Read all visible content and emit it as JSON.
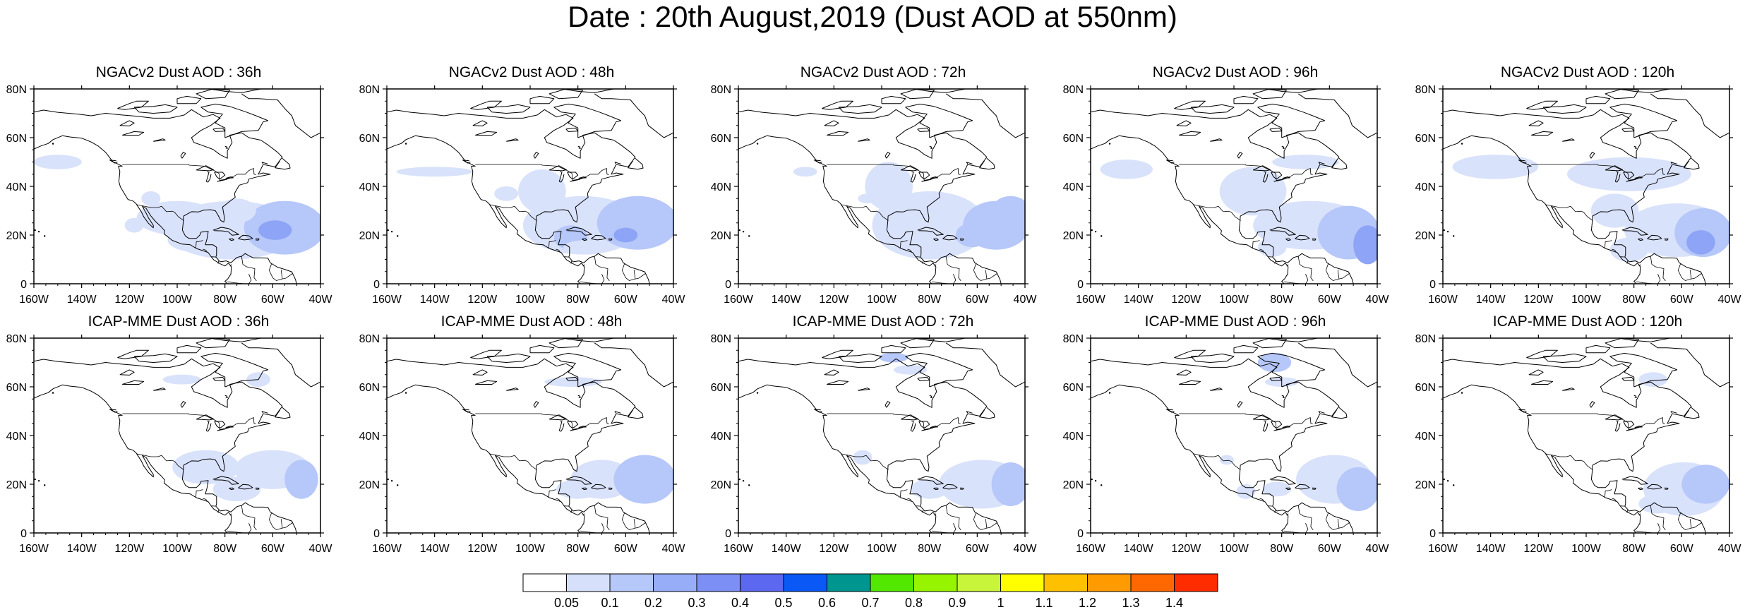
{
  "figure": {
    "title": "Date : 20th August,2019 (Dust AOD at 550nm)"
  },
  "map": {
    "lon_range": [
      -160,
      -40
    ],
    "lat_range": [
      0,
      80
    ],
    "lon_ticks": [
      "160W",
      "140W",
      "120W",
      "100W",
      "80W",
      "60W",
      "40W"
    ],
    "lat_ticks": [
      "80N",
      "60N",
      "40N",
      "20N",
      "0"
    ],
    "coastline_color": "#000000"
  },
  "panels": [
    {
      "row": 1,
      "col": 1,
      "title": "NGACv2 Dust AOD : 36h",
      "model": "NGACv2",
      "lead": "36h"
    },
    {
      "row": 1,
      "col": 2,
      "title": "NGACv2 Dust AOD : 48h",
      "model": "NGACv2",
      "lead": "48h"
    },
    {
      "row": 1,
      "col": 3,
      "title": "NGACv2 Dust AOD : 72h",
      "model": "NGACv2",
      "lead": "72h"
    },
    {
      "row": 1,
      "col": 4,
      "title": "NGACv2 Dust AOD : 96h",
      "model": "NGACv2",
      "lead": "96h"
    },
    {
      "row": 1,
      "col": 5,
      "title": "NGACv2 Dust AOD : 120h",
      "model": "NGACv2",
      "lead": "120h"
    },
    {
      "row": 2,
      "col": 1,
      "title": "ICAP-MME Dust AOD : 36h",
      "model": "ICAP-MME",
      "lead": "36h"
    },
    {
      "row": 2,
      "col": 2,
      "title": "ICAP-MME Dust AOD : 48h",
      "model": "ICAP-MME",
      "lead": "48h"
    },
    {
      "row": 2,
      "col": 3,
      "title": "ICAP-MME Dust AOD : 72h",
      "model": "ICAP-MME",
      "lead": "72h"
    },
    {
      "row": 2,
      "col": 4,
      "title": "ICAP-MME Dust AOD : 96h",
      "model": "ICAP-MME",
      "lead": "96h"
    },
    {
      "row": 2,
      "col": 5,
      "title": "ICAP-MME Dust AOD : 120h",
      "model": "ICAP-MME",
      "lead": "120h"
    }
  ],
  "colorbar": {
    "labels": [
      "0.05",
      "0.1",
      "0.2",
      "0.3",
      "0.4",
      "0.5",
      "0.6",
      "0.7",
      "0.8",
      "0.9",
      "1",
      "1.1",
      "1.2",
      "1.3",
      "1.4"
    ],
    "colors": [
      "#ffffff",
      "#d6e0fb",
      "#b6c7f9",
      "#97adf8",
      "#7c8ff4",
      "#5c68f0",
      "#0a58f5",
      "#009690",
      "#52e800",
      "#96f400",
      "#c8f53a",
      "#ffff00",
      "#ffc000",
      "#ff9a00",
      "#ff6800",
      "#ff2c00"
    ]
  },
  "dust_colors": {
    "light": "#d9e2fb",
    "mid": "#b6c7f9",
    "strong": "#8ea4f6",
    "core": "#6f85ee"
  }
}
